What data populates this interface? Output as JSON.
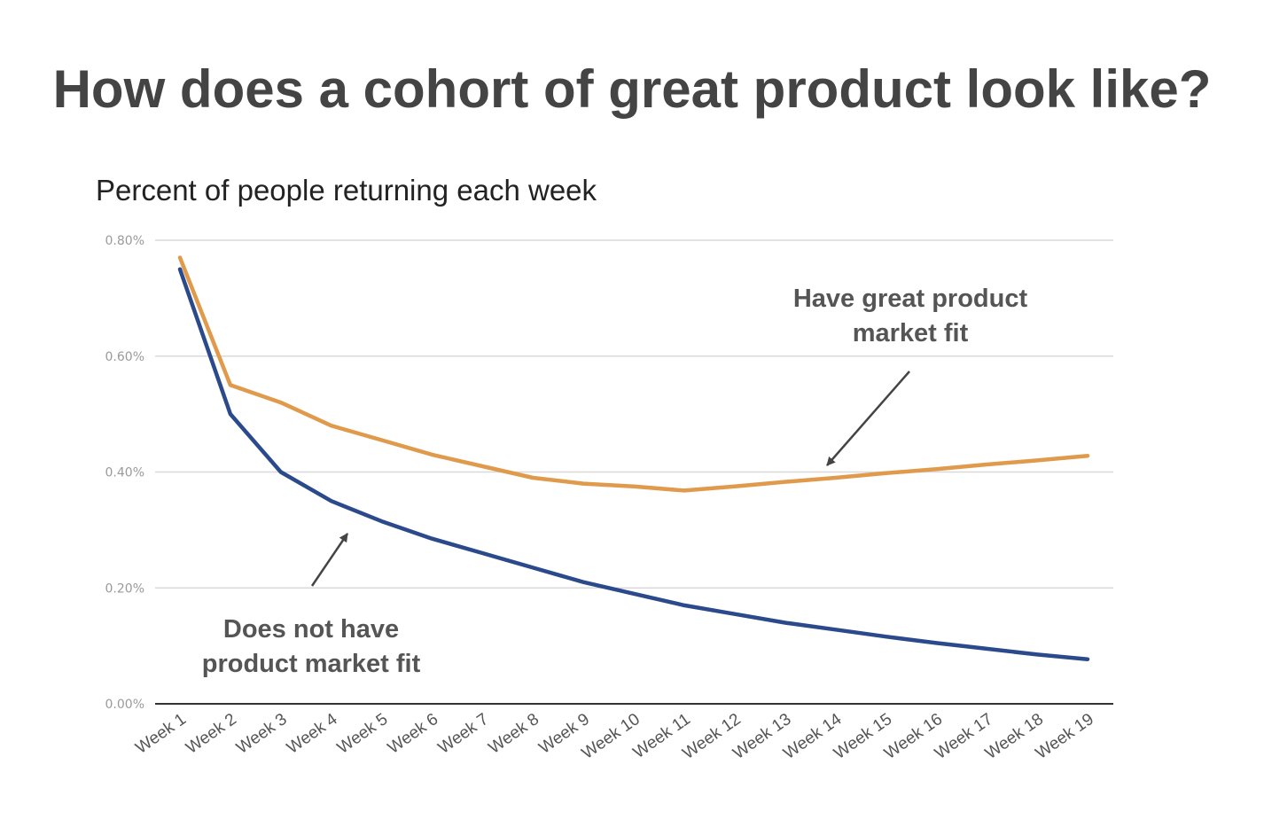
{
  "page": {
    "title": "How does a cohort of great product look like?"
  },
  "chart_data": {
    "type": "line",
    "title": "Percent of people returning each week",
    "xlabel": "",
    "ylabel": "",
    "ylim": [
      0,
      0.8
    ],
    "y_ticks": [
      "0.00%",
      "0.20%",
      "0.40%",
      "0.60%",
      "0.80%"
    ],
    "grid": true,
    "categories": [
      "Week 1",
      "Week 2",
      "Week 3",
      "Week 4",
      "Week 5",
      "Week 6",
      "Week 7",
      "Week 8",
      "Week 9",
      "Week 10",
      "Week 11",
      "Week 12",
      "Week 13",
      "Week 14",
      "Week 15",
      "Week 16",
      "Week 17",
      "Week 18",
      "Week 19"
    ],
    "series": [
      {
        "color": "#e09a4c",
        "values": [
          0.77,
          0.55,
          0.52,
          0.48,
          0.455,
          0.43,
          0.41,
          0.39,
          0.38,
          0.375,
          0.368,
          0.375,
          0.383,
          0.39,
          0.398,
          0.405,
          0.413,
          0.42,
          0.428
        ]
      },
      {
        "color": "#2b4a8c",
        "values": [
          0.75,
          0.5,
          0.4,
          0.35,
          0.315,
          0.285,
          0.26,
          0.235,
          0.21,
          0.19,
          0.17,
          0.155,
          0.14,
          0.128,
          0.116,
          0.105,
          0.095,
          0.085,
          0.077
        ]
      }
    ],
    "annotations": [
      {
        "text_lines": [
          "Have great product",
          "market fit"
        ],
        "target_category": "Week 14",
        "target_series": 0
      },
      {
        "text_lines": [
          "Does not have",
          "product market fit"
        ],
        "target_category": "Week 5",
        "target_series": 1
      }
    ]
  }
}
